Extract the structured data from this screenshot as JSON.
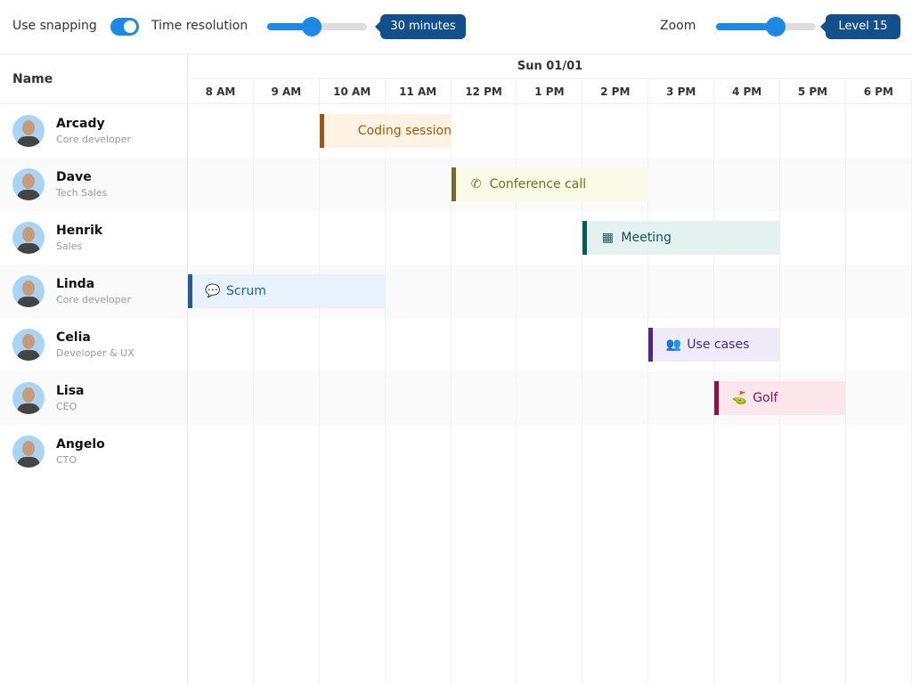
{
  "toolbar": {
    "snapping_label": "Use snapping",
    "snapping_on": true,
    "resolution_label": "Time resolution",
    "resolution_value": "30 minutes",
    "resolution_fraction": 0.45,
    "zoom_label": "Zoom",
    "zoom_value": "Level 15",
    "zoom_fraction": 0.6
  },
  "header": {
    "name_label": "Name",
    "date": "Sun 01/01",
    "hours": [
      "8 AM",
      "9 AM",
      "10 AM",
      "11 AM",
      "12 PM",
      "1 PM",
      "2 PM",
      "3 PM",
      "4 PM",
      "5 PM",
      "6 PM"
    ]
  },
  "resources": [
    {
      "name": "Arcady",
      "role": "Core developer"
    },
    {
      "name": "Dave",
      "role": "Tech Sales"
    },
    {
      "name": "Henrik",
      "role": "Sales"
    },
    {
      "name": "Linda",
      "role": "Core developer"
    },
    {
      "name": "Celia",
      "role": "Developer & UX"
    },
    {
      "name": "Lisa",
      "role": "CEO"
    },
    {
      "name": "Angelo",
      "role": "CTO"
    }
  ],
  "events": [
    {
      "title": "Coding session",
      "icon": "code-icon",
      "glyph": "</>",
      "row": 0,
      "start": 10,
      "end": 12,
      "color": "#a0580f",
      "bg": "#fff3e3"
    },
    {
      "title": "Conference call",
      "icon": "phone-icon",
      "glyph": "✆",
      "row": 1,
      "start": 12,
      "end": 15,
      "color": "#6f6f1e",
      "bg": "#fafae8"
    },
    {
      "title": "Meeting",
      "icon": "calendar-icon",
      "glyph": "▦",
      "row": 2,
      "start": 14,
      "end": 17,
      "color": "#0c5a4f",
      "bg": "#e3f2f0"
    },
    {
      "title": "Scrum",
      "icon": "comments-icon",
      "glyph": "💬",
      "row": 3,
      "start": 8,
      "end": 11,
      "color": "#1b5fa3",
      "bg": "#e8f2fc"
    },
    {
      "title": "Use cases",
      "icon": "users-icon",
      "glyph": "👥",
      "row": 4,
      "start": 15,
      "end": 17,
      "color": "#4b2a82",
      "bg": "#efeaf7"
    },
    {
      "title": "Golf",
      "icon": "golf-ball-icon",
      "glyph": "⛳",
      "row": 5,
      "start": 16,
      "end": 18,
      "color": "#8a1544",
      "bg": "#fbe6ec"
    }
  ]
}
